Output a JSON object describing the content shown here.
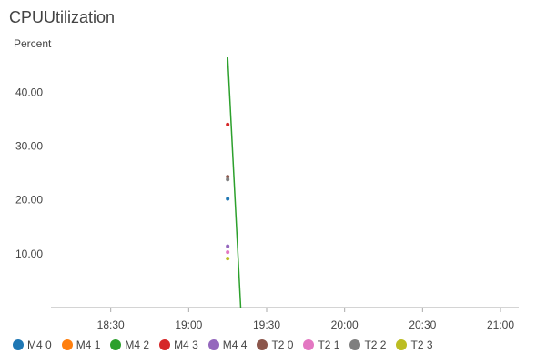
{
  "chart_data": {
    "type": "line",
    "title": "CPUUtilization",
    "ylabel": "Percent",
    "xlabel": "",
    "x_ticks": [
      "18:30",
      "19:00",
      "19:30",
      "20:00",
      "20:30",
      "21:00"
    ],
    "xlim": [
      "18:07",
      "21:07"
    ],
    "y_ticks": [
      "10.00",
      "20.00",
      "30.00",
      "40.00"
    ],
    "ylim": [
      0,
      47
    ],
    "grid": false,
    "legend_position": "bottom",
    "series": [
      {
        "name": "M4 0",
        "color": "#1f77b4",
        "points": [
          [
            "19:15",
            20.2
          ]
        ]
      },
      {
        "name": "M4 1",
        "color": "#ff7f0e",
        "points": []
      },
      {
        "name": "M4 2",
        "color": "#2ca02c",
        "points": [
          [
            "19:15",
            46.5
          ],
          [
            "19:20",
            0
          ]
        ]
      },
      {
        "name": "M4 3",
        "color": "#d62728",
        "points": [
          [
            "19:15",
            34.0
          ]
        ]
      },
      {
        "name": "M4 4",
        "color": "#9467bd",
        "points": [
          [
            "19:15",
            11.4
          ]
        ]
      },
      {
        "name": "T2 0",
        "color": "#8c564b",
        "points": [
          [
            "19:15",
            24.3
          ]
        ]
      },
      {
        "name": "T2 1",
        "color": "#e377c2",
        "points": [
          [
            "19:15",
            10.3
          ]
        ]
      },
      {
        "name": "T2 2",
        "color": "#7f7f7f",
        "points": [
          [
            "19:15",
            23.8
          ]
        ]
      },
      {
        "name": "T2 3",
        "color": "#bcbd22",
        "points": [
          [
            "19:15",
            9.1
          ]
        ]
      }
    ]
  }
}
